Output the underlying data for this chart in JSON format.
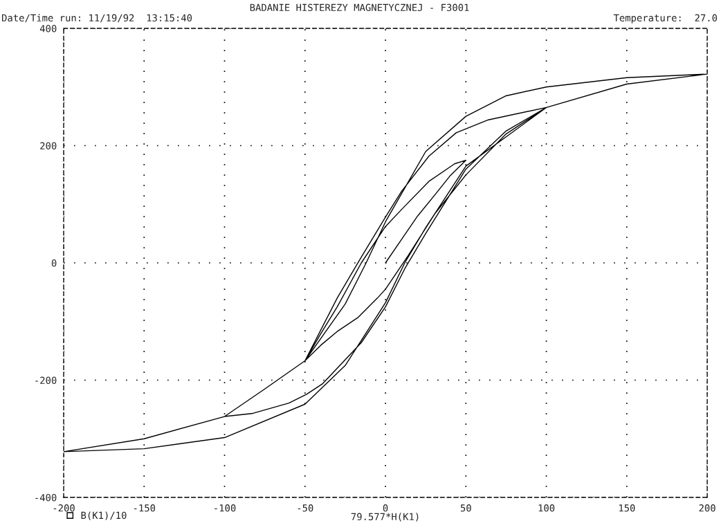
{
  "chart_data": {
    "type": "line",
    "title": "BADANIE HISTEREZY MAGNETYCZNEJ - F3001",
    "xlabel": "79.577*H(K1)",
    "annotations": [
      "Date/Time run: 11/19/92  13:15:40",
      "Temperature:  27.0"
    ],
    "x": [
      0,
      10,
      20,
      31,
      40,
      50,
      43,
      27,
      10,
      0,
      -15,
      -30,
      -40,
      -50,
      -40,
      -30,
      -17,
      -5,
      0,
      14,
      31,
      50,
      75,
      100,
      64,
      44,
      27,
      10,
      0,
      -15,
      -30,
      -50,
      -75,
      -100,
      -83,
      -60,
      -49,
      -39,
      -15,
      0,
      12,
      25,
      50,
      75,
      100,
      150,
      200,
      150,
      100,
      75,
      50,
      25,
      0,
      -12,
      -25,
      -50,
      -75,
      -100,
      -150,
      -200,
      -150,
      -100,
      -50,
      -25,
      0,
      12,
      25,
      50,
      100,
      150,
      200
    ],
    "series": [
      {
        "name": "B(K1)/10",
        "color": "#000000",
        "values": [
          0,
          40,
          80,
          117,
          148,
          175,
          169,
          139,
          91,
          62,
          0,
          -75,
          -120,
          -167,
          -140,
          -117,
          -93,
          -60,
          -45,
          12,
          85,
          150,
          220,
          265,
          244,
          222,
          182,
          122,
          78,
          10,
          -60,
          -167,
          -215,
          -262,
          -257,
          -239,
          -224,
          -206,
          -136,
          -75,
          -10,
          50,
          160,
          225,
          265,
          305,
          322,
          316,
          300,
          285,
          250,
          190,
          70,
          0,
          -70,
          -167,
          -215,
          -262,
          -300,
          -322,
          -317,
          -298,
          -241,
          -175,
          -68,
          0,
          60,
          165,
          265,
          305,
          322
        ]
      }
    ],
    "xlim": [
      -200,
      200
    ],
    "ylim": [
      -400,
      400
    ],
    "xticks": [
      -200,
      -150,
      -100,
      -50,
      0,
      50,
      100,
      150,
      200
    ],
    "yticks": [
      -400,
      -200,
      0,
      200,
      400
    ],
    "grid": true,
    "legend": "bottom left",
    "line_style": "solid"
  }
}
